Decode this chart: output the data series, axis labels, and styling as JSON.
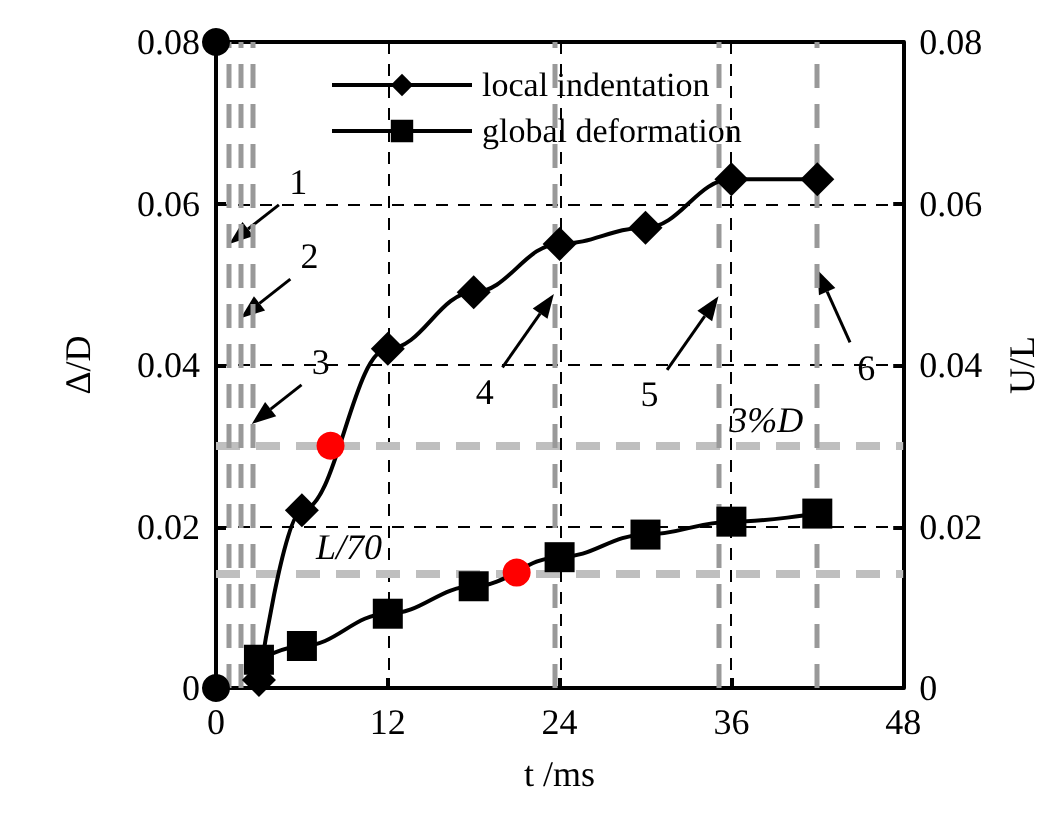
{
  "chart_data": {
    "type": "line",
    "xlabel": "t /ms",
    "ylabel": "Δ/D",
    "y2label": "U/L",
    "x": [
      3,
      6,
      12,
      18,
      24,
      30,
      36,
      42
    ],
    "series": [
      {
        "name": "local indentation",
        "color": "#000000",
        "marker": "diamond",
        "values": [
          0.001,
          0.022,
          0.042,
          0.049,
          0.055,
          0.057,
          0.063,
          0.063
        ]
      },
      {
        "name": "global deformation",
        "color": "#000000",
        "marker": "square",
        "values": [
          0.0035,
          0.0052,
          0.0092,
          0.0126,
          0.0162,
          0.019,
          0.0206,
          0.0216
        ]
      },
      {
        "type": "scatter",
        "marker": "circle",
        "x": [
          0,
          0,
          8,
          21
        ],
        "values": [
          0,
          0.08,
          0.03,
          0.0143
        ],
        "colors": [
          "#000000",
          "#000000",
          "#ff0000",
          "#ff0000"
        ]
      }
    ],
    "xlim": [
      0,
      48
    ],
    "xticks": [
      0,
      12,
      24,
      36,
      48
    ],
    "ylim": [
      0,
      0.08
    ],
    "yticks": [
      0,
      0.02,
      0.04,
      0.06,
      0.08
    ],
    "y2lim": [
      0,
      0.08
    ],
    "y2ticks": [
      0,
      0.02,
      0.04,
      0.06,
      0.08
    ],
    "grid": true,
    "legend": "top",
    "line_style": "solid",
    "ref_lines": [
      {
        "axis": "y",
        "value": 0.03,
        "label": "3%D",
        "color": "#bfbfbf",
        "line_style": "dashed"
      },
      {
        "axis": "y",
        "value": 0.0143,
        "label": "L/70",
        "color": "#bfbfbf",
        "line_style": "dashed"
      },
      {
        "axis": "x",
        "value": 0.92,
        "color": "#999999",
        "line_style": "dashed"
      },
      {
        "axis": "x",
        "value": 1.72,
        "color": "#999999",
        "line_style": "dashed"
      },
      {
        "axis": "x",
        "value": 2.5,
        "color": "#999999",
        "line_style": "dashed"
      },
      {
        "axis": "x",
        "value": 23.6,
        "color": "#999999",
        "line_style": "dashed"
      },
      {
        "axis": "x",
        "value": 35.1,
        "color": "#999999",
        "line_style": "dashed"
      },
      {
        "axis": "x",
        "value": 42,
        "color": "#999999",
        "line_style": "dashed"
      }
    ],
    "annotations": [
      {
        "text": "1",
        "x": 0.92,
        "y": 0.055
      },
      {
        "text": "2",
        "x": 1.72,
        "y": 0.0458
      },
      {
        "text": "3",
        "x": 2.5,
        "y": 0.0327
      },
      {
        "text": "4",
        "x": 23.6,
        "y": 0.0488
      },
      {
        "text": "5",
        "x": 35.1,
        "y": 0.0485
      },
      {
        "text": "6",
        "x": 42,
        "y": 0.0518
      }
    ]
  }
}
